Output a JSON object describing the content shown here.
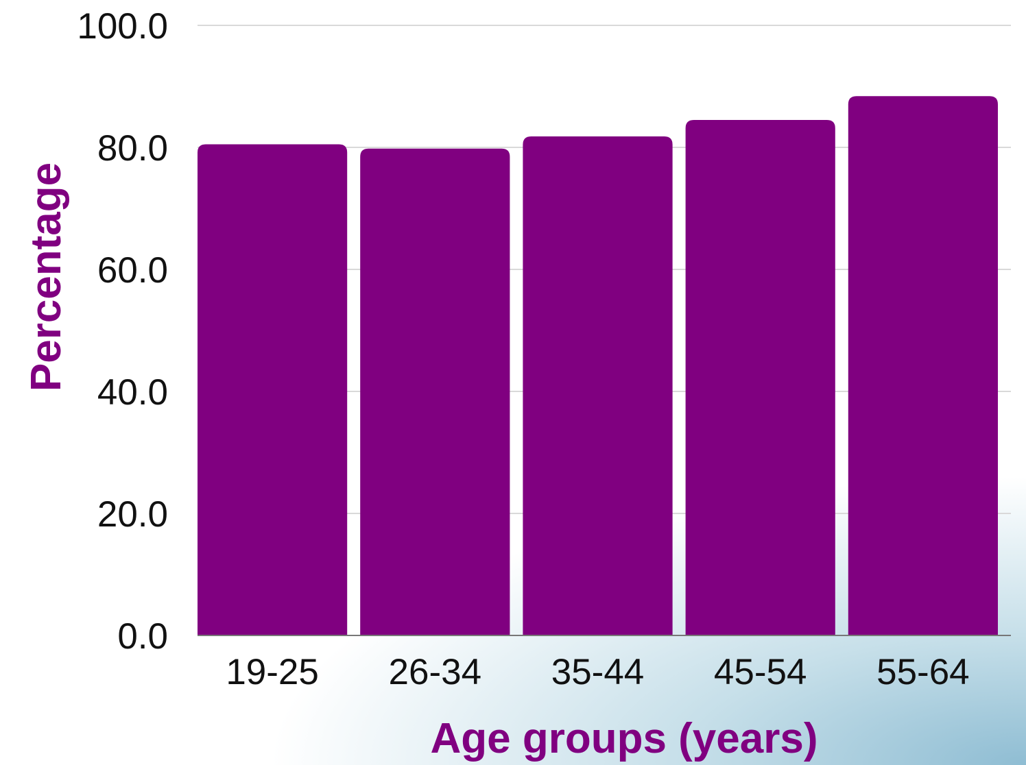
{
  "chart_data": {
    "type": "bar",
    "categories": [
      "19-25",
      "26-34",
      "35-44",
      "45-54",
      "55-64"
    ],
    "values": [
      80.5,
      79.8,
      81.8,
      84.5,
      88.4
    ],
    "title": "",
    "xlabel": "Age groups (years)",
    "ylabel": "Percentage",
    "ylim": [
      0,
      100
    ],
    "yticks": [
      "0.0",
      "20.0",
      "40.0",
      "60.0",
      "80.0",
      "100.0"
    ],
    "grid": true,
    "bar_color": "#800080",
    "label_color": "#800080",
    "grid_color": "#d9d9d9"
  }
}
